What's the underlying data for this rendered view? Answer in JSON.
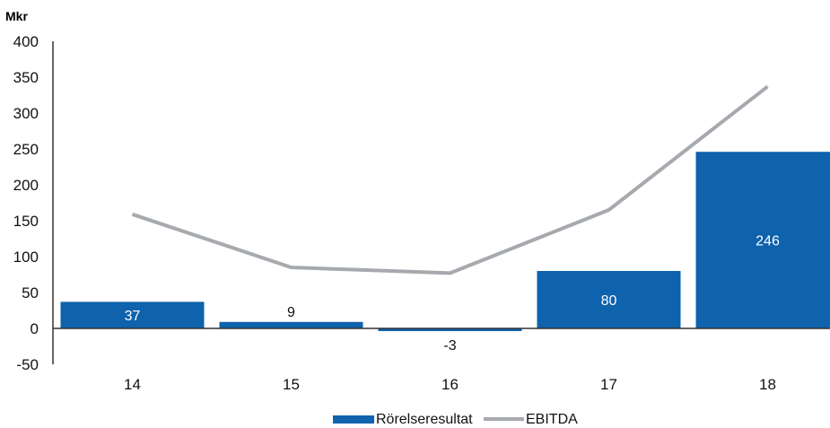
{
  "chart_data": {
    "type": "bar",
    "unit_label": "Mkr",
    "categories": [
      "14",
      "15",
      "16",
      "17",
      "18"
    ],
    "series": [
      {
        "name": "Rörelseresultat",
        "type": "bar",
        "values": [
          37,
          9,
          -3,
          80,
          246
        ],
        "color": "#0f62ac",
        "data_labels": [
          "37",
          "9",
          "-3",
          "80",
          "246"
        ]
      },
      {
        "name": "EBITDA",
        "type": "line",
        "values": [
          159,
          85,
          77,
          165,
          337
        ],
        "color": "#a6a9ad"
      }
    ],
    "yticks": [
      "400",
      "350",
      "300",
      "250",
      "200",
      "150",
      "100",
      "50",
      "0",
      "-50"
    ],
    "ylim": [
      -50,
      400
    ],
    "legend_position": "bottom",
    "grid": false
  }
}
